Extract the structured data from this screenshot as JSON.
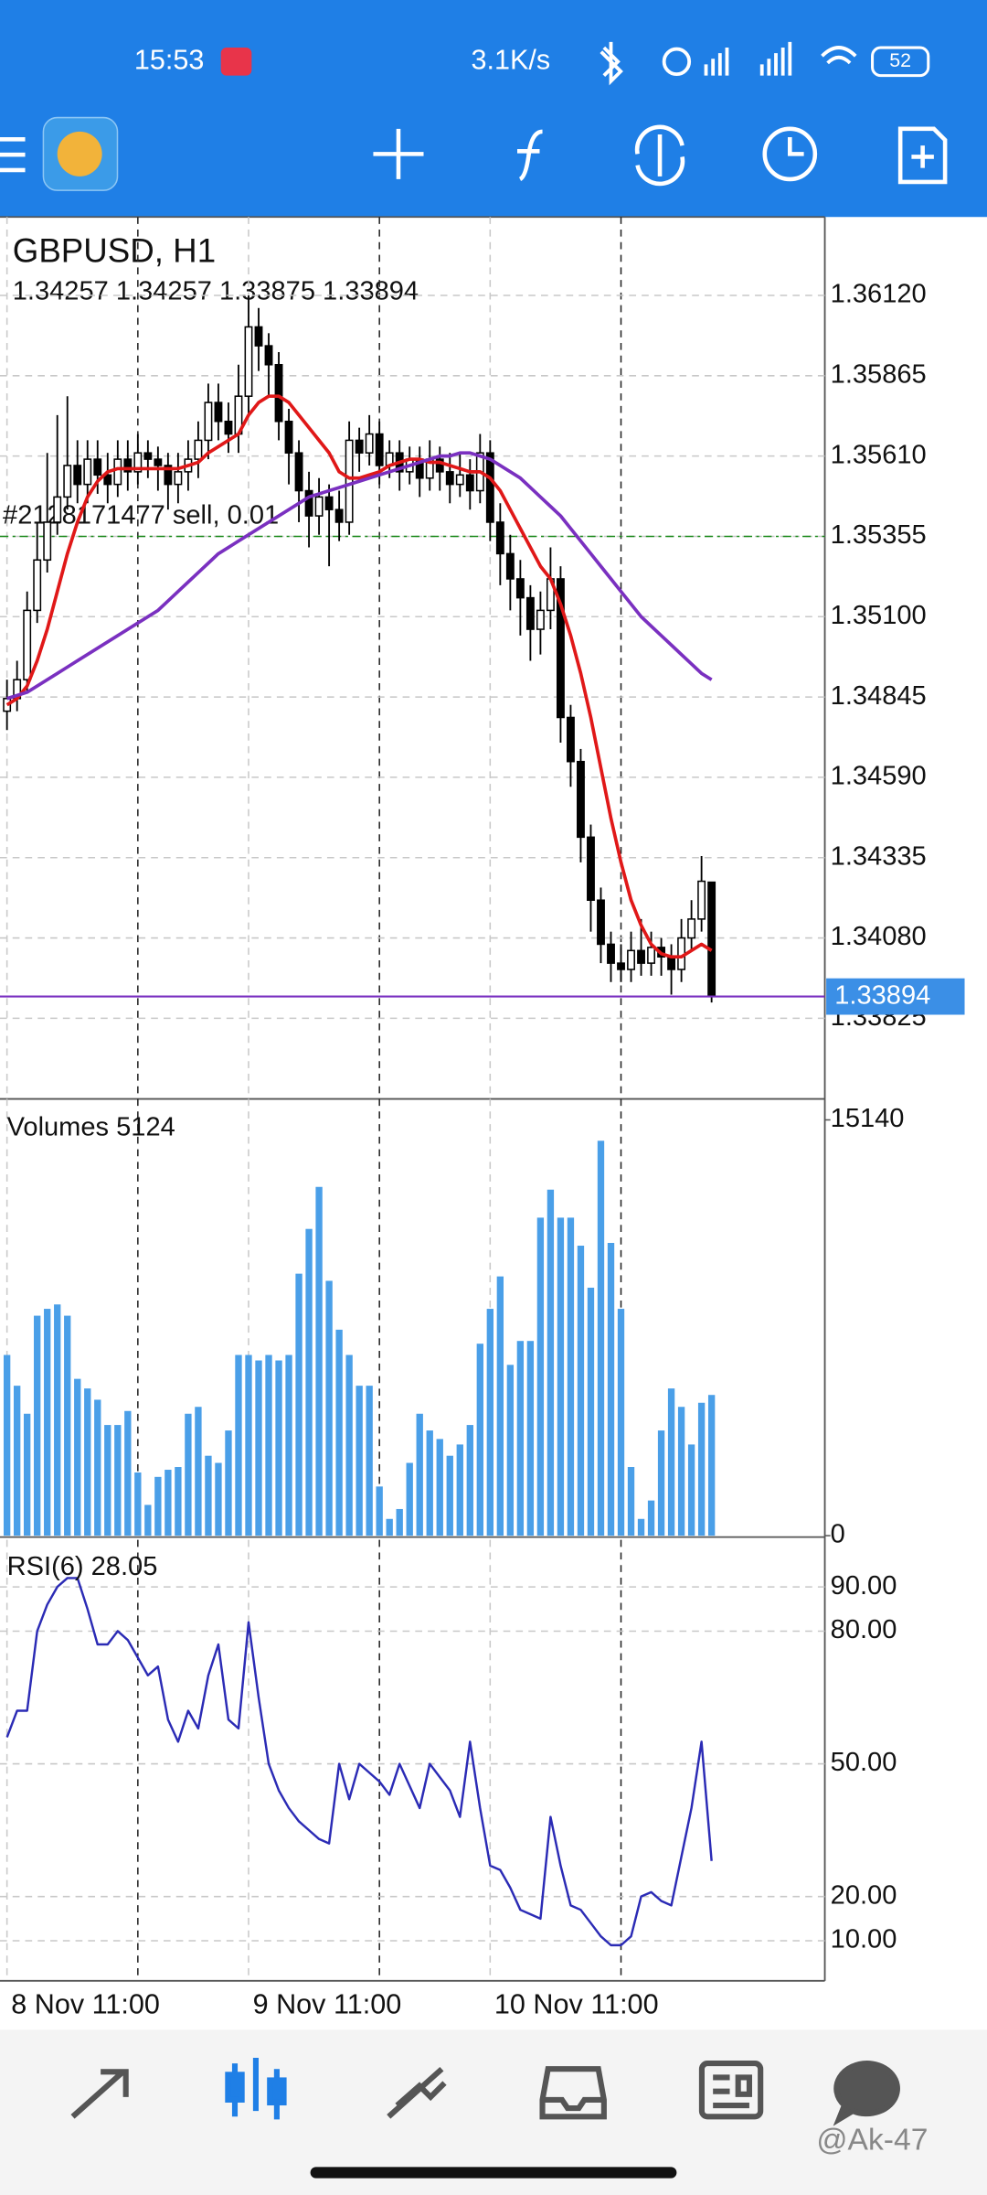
{
  "status_bar": {
    "time": "15:53",
    "speed": "3.1K/s",
    "battery": "52"
  },
  "watermark": "@Ak-47",
  "chart_data": [
    {
      "type": "candlestick",
      "title": "GBPUSD, H1",
      "subtitle": "1.34257 1.34257 1.33875 1.33894",
      "categories": [
        "8 Nov 11:00",
        null,
        null,
        null,
        null,
        null,
        null,
        null,
        null,
        null,
        null,
        null,
        null,
        null,
        null,
        null,
        null,
        null,
        null,
        null,
        null,
        null,
        null,
        null,
        "9 Nov 11:00",
        null,
        null,
        null,
        null,
        null,
        null,
        null,
        null,
        null,
        null,
        null,
        null,
        null,
        null,
        null,
        null,
        null,
        null,
        null,
        null,
        null,
        null,
        null,
        "10 Nov 11:00",
        null,
        null,
        null,
        null,
        null,
        null,
        null,
        null,
        null,
        null,
        null,
        null,
        null,
        null,
        null,
        null,
        null,
        null,
        null,
        null,
        null,
        null
      ],
      "open": [
        1.348,
        1.3484,
        1.349,
        1.3512,
        1.3528,
        1.354,
        1.3548,
        1.3558,
        1.3552,
        1.356,
        1.3555,
        1.3552,
        1.356,
        1.3556,
        1.3562,
        1.356,
        1.3558,
        1.3552,
        1.3556,
        1.356,
        1.3566,
        1.3578,
        1.3572,
        1.3568,
        1.358,
        1.3602,
        1.3596,
        1.359,
        1.3572,
        1.3562,
        1.355,
        1.3542,
        1.3548,
        1.3544,
        1.354,
        1.3566,
        1.3562,
        1.3568,
        1.3558,
        1.3562,
        1.3556,
        1.356,
        1.3554,
        1.356,
        1.3556,
        1.3552,
        1.3555,
        1.355,
        1.3562,
        1.354,
        1.353,
        1.3522,
        1.3516,
        1.3506,
        1.3512,
        1.3522,
        1.3478,
        1.3464,
        1.344,
        1.342,
        1.3406,
        1.34,
        1.3398,
        1.3404,
        1.34,
        1.3405,
        1.3402,
        1.3398,
        1.3408,
        1.3414,
        1.34257
      ],
      "high": [
        1.349,
        1.3496,
        1.3518,
        1.354,
        1.3562,
        1.3574,
        1.358,
        1.3566,
        1.3566,
        1.3566,
        1.3562,
        1.3566,
        1.3566,
        1.3568,
        1.3566,
        1.3564,
        1.3562,
        1.3562,
        1.3566,
        1.3572,
        1.3584,
        1.3584,
        1.3578,
        1.359,
        1.3612,
        1.3608,
        1.36,
        1.3594,
        1.3576,
        1.3566,
        1.3556,
        1.3554,
        1.3552,
        1.355,
        1.3572,
        1.357,
        1.3574,
        1.3572,
        1.3566,
        1.3566,
        1.3564,
        1.3564,
        1.3566,
        1.3564,
        1.3562,
        1.3562,
        1.356,
        1.3568,
        1.3566,
        1.3546,
        1.3536,
        1.3528,
        1.352,
        1.3518,
        1.3532,
        1.3526,
        1.3482,
        1.3468,
        1.3444,
        1.3424,
        1.341,
        1.3406,
        1.341,
        1.3414,
        1.341,
        1.3408,
        1.3406,
        1.3414,
        1.342,
        1.3434,
        1.34257
      ],
      "low": [
        1.3474,
        1.348,
        1.3486,
        1.3508,
        1.3524,
        1.3536,
        1.3544,
        1.3546,
        1.3546,
        1.3549,
        1.3546,
        1.3548,
        1.355,
        1.3552,
        1.3554,
        1.355,
        1.3544,
        1.3546,
        1.355,
        1.3554,
        1.356,
        1.3566,
        1.3562,
        1.3562,
        1.3574,
        1.3588,
        1.358,
        1.3566,
        1.3552,
        1.354,
        1.3532,
        1.3536,
        1.3526,
        1.3534,
        1.3536,
        1.3556,
        1.3558,
        1.3552,
        1.3554,
        1.355,
        1.3552,
        1.3548,
        1.355,
        1.355,
        1.3546,
        1.3548,
        1.3544,
        1.3546,
        1.3534,
        1.352,
        1.3512,
        1.3504,
        1.3496,
        1.3498,
        1.3506,
        1.347,
        1.3456,
        1.3432,
        1.341,
        1.34,
        1.3394,
        1.3394,
        1.3394,
        1.3396,
        1.3396,
        1.3396,
        1.339,
        1.3394,
        1.3404,
        1.341,
        1.33875
      ],
      "close": [
        1.3484,
        1.349,
        1.3512,
        1.3528,
        1.354,
        1.3548,
        1.3558,
        1.3552,
        1.356,
        1.3555,
        1.3552,
        1.356,
        1.3556,
        1.3562,
        1.356,
        1.3558,
        1.3552,
        1.3556,
        1.356,
        1.3566,
        1.3578,
        1.3572,
        1.3568,
        1.358,
        1.3602,
        1.3596,
        1.359,
        1.3572,
        1.3562,
        1.355,
        1.3542,
        1.3548,
        1.3544,
        1.354,
        1.3566,
        1.3562,
        1.3568,
        1.3558,
        1.3562,
        1.3556,
        1.356,
        1.3554,
        1.356,
        1.3556,
        1.3552,
        1.3555,
        1.355,
        1.3562,
        1.354,
        1.353,
        1.3522,
        1.3516,
        1.3506,
        1.3512,
        1.3522,
        1.3478,
        1.3464,
        1.344,
        1.342,
        1.3406,
        1.34,
        1.3398,
        1.3404,
        1.34,
        1.3405,
        1.3402,
        1.3398,
        1.3408,
        1.3414,
        1.3426,
        1.33894
      ],
      "series": [
        {
          "color": "#e01818",
          "values": [
            1.3482,
            1.3484,
            1.3488,
            1.3496,
            1.3506,
            1.3518,
            1.353,
            1.354,
            1.3548,
            1.3553,
            1.3556,
            1.3557,
            1.3557,
            1.3557,
            1.3557,
            1.3557,
            1.3557,
            1.3557,
            1.3558,
            1.3559,
            1.3562,
            1.3564,
            1.3566,
            1.3568,
            1.3574,
            1.3578,
            1.358,
            1.358,
            1.3578,
            1.3574,
            1.357,
            1.3566,
            1.3562,
            1.3556,
            1.3554,
            1.3554,
            1.3555,
            1.3556,
            1.3558,
            1.3559,
            1.356,
            1.356,
            1.3559,
            1.3559,
            1.3558,
            1.3557,
            1.3556,
            1.3556,
            1.3554,
            1.355,
            1.3544,
            1.3538,
            1.3532,
            1.3526,
            1.3522,
            1.3514,
            1.3504,
            1.3492,
            1.3478,
            1.3462,
            1.3446,
            1.3432,
            1.342,
            1.3412,
            1.3406,
            1.3403,
            1.3402,
            1.3402,
            1.3404,
            1.3406,
            1.3404
          ]
        },
        {
          "color": "#7a30c0",
          "values": [
            1.3484,
            1.3485,
            1.3486,
            1.3488,
            1.349,
            1.3492,
            1.3494,
            1.3496,
            1.3498,
            1.35,
            1.3502,
            1.3504,
            1.3506,
            1.3508,
            1.351,
            1.3512,
            1.3515,
            1.3518,
            1.3521,
            1.3524,
            1.3527,
            1.353,
            1.3532,
            1.3534,
            1.3536,
            1.3538,
            1.354,
            1.3542,
            1.3544,
            1.3546,
            1.3548,
            1.3549,
            1.355,
            1.3551,
            1.3552,
            1.3553,
            1.3554,
            1.3555,
            1.3556,
            1.3557,
            1.3558,
            1.3559,
            1.356,
            1.3561,
            1.3561,
            1.3562,
            1.3562,
            1.3561,
            1.356,
            1.3558,
            1.3556,
            1.3554,
            1.3551,
            1.3548,
            1.3545,
            1.3542,
            1.3538,
            1.3534,
            1.353,
            1.3526,
            1.3522,
            1.3518,
            1.3514,
            1.351,
            1.3507,
            1.3504,
            1.3501,
            1.3498,
            1.3495,
            1.3492,
            1.349
          ]
        }
      ],
      "ylim": [
        1.33569,
        1.36369
      ],
      "yticks": [
        {
          "value": 1.3612,
          "label": "1.36120"
        },
        1.35865,
        {
          "value": 1.3561,
          "label": "1.35610"
        },
        1.35355,
        {
          "value": 1.351,
          "label": "1.35100"
        },
        1.34845,
        {
          "value": 1.3459,
          "label": "1.34590"
        },
        1.34335,
        {
          "value": 1.3408,
          "label": "1.34080"
        },
        1.33825
      ],
      "grid": true,
      "bid": 1.33894,
      "order": {
        "label": "#2128171477 sell, 0.01",
        "price": 1.35355
      }
    },
    {
      "type": "bar",
      "title": "Volumes 5124",
      "color": "#4a9fe8",
      "values": [
        6580,
        5460,
        4440,
        8010,
        8260,
        8420,
        8010,
        5710,
        5360,
        4950,
        4030,
        4030,
        4540,
        2300,
        1120,
        2140,
        2400,
        2500,
        4440,
        4690,
        2910,
        2650,
        3830,
        6580,
        6580,
        6380,
        6580,
        6380,
        6580,
        9540,
        11170,
        12700,
        9280,
        7500,
        6580,
        5460,
        5460,
        1790,
        610,
        970,
        2650,
        4440,
        3830,
        3520,
        2910,
        3320,
        4030,
        6990,
        8260,
        9440,
        6220,
        7090,
        7090,
        11580,
        12600,
        11580,
        11580,
        10560,
        9030,
        14380,
        10660,
        8260,
        2500,
        610,
        1280,
        3830,
        5360,
        4690,
        3320,
        4840,
        5124
      ],
      "ylim": [
        0,
        15140
      ],
      "yticks": [
        15140,
        0
      ]
    },
    {
      "type": "line",
      "title": "RSI(6) 28.05",
      "color": "#2b2bb5",
      "values": [
        56,
        62,
        62,
        80,
        86,
        90,
        92,
        92,
        85,
        77,
        77,
        80,
        78,
        74,
        70,
        72,
        60,
        55,
        62,
        58,
        70,
        77,
        60,
        58,
        82,
        65,
        50,
        44,
        40,
        37,
        35,
        33,
        32,
        50,
        42,
        50,
        48,
        46,
        43,
        50,
        45,
        40,
        50,
        47,
        44,
        38,
        55,
        40,
        27,
        26,
        22,
        17,
        16,
        15,
        38,
        27,
        18,
        17,
        14,
        11,
        9,
        9,
        11,
        20,
        21,
        19,
        18,
        29,
        40,
        55,
        28.05
      ],
      "ylim": [
        0,
        100
      ],
      "yticks": [
        {
          "value": 90,
          "label": "90.00"
        },
        {
          "value": 80,
          "label": "80.00"
        },
        {
          "value": 50,
          "label": "50.00"
        },
        {
          "value": 20,
          "label": "20.00"
        },
        {
          "value": 10,
          "label": "10.00"
        }
      ],
      "grid": true
    }
  ]
}
